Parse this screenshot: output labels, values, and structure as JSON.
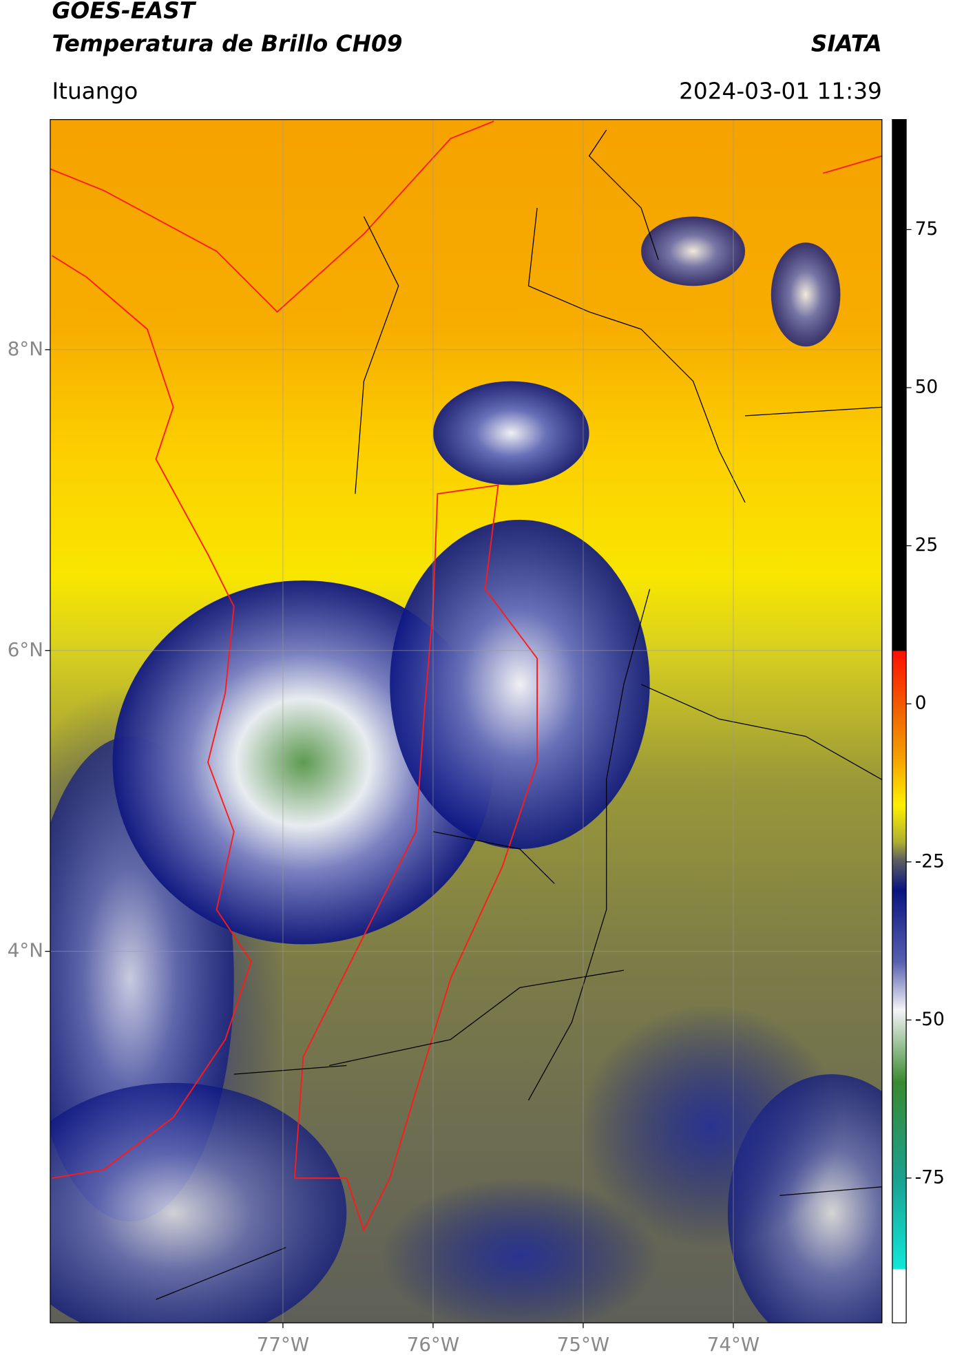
{
  "chart_data": {
    "type": "map",
    "title": "GOES-EAST",
    "subtitle": "Temperatura de Brillo CH09",
    "source": "SIATA",
    "location": "Ituango",
    "timestamp": "2024-03-01 11:39",
    "xlim": [
      -78.55,
      -73.01
    ],
    "ylim": [
      1.53,
      9.53
    ],
    "xticks": [
      {
        "value": -77,
        "label": "77°W"
      },
      {
        "value": -76,
        "label": "76°W"
      },
      {
        "value": -75,
        "label": "75°W"
      },
      {
        "value": -74,
        "label": "74°W"
      }
    ],
    "yticks": [
      {
        "value": 8,
        "label": "8°N"
      },
      {
        "value": 6,
        "label": "6°N"
      },
      {
        "value": 4,
        "label": "4°N"
      }
    ],
    "grid": true,
    "colorbar": {
      "lim": [
        -97.9,
        92.4
      ],
      "ticks": [
        75,
        50,
        25,
        0,
        -25,
        -50,
        -75
      ]
    }
  }
}
